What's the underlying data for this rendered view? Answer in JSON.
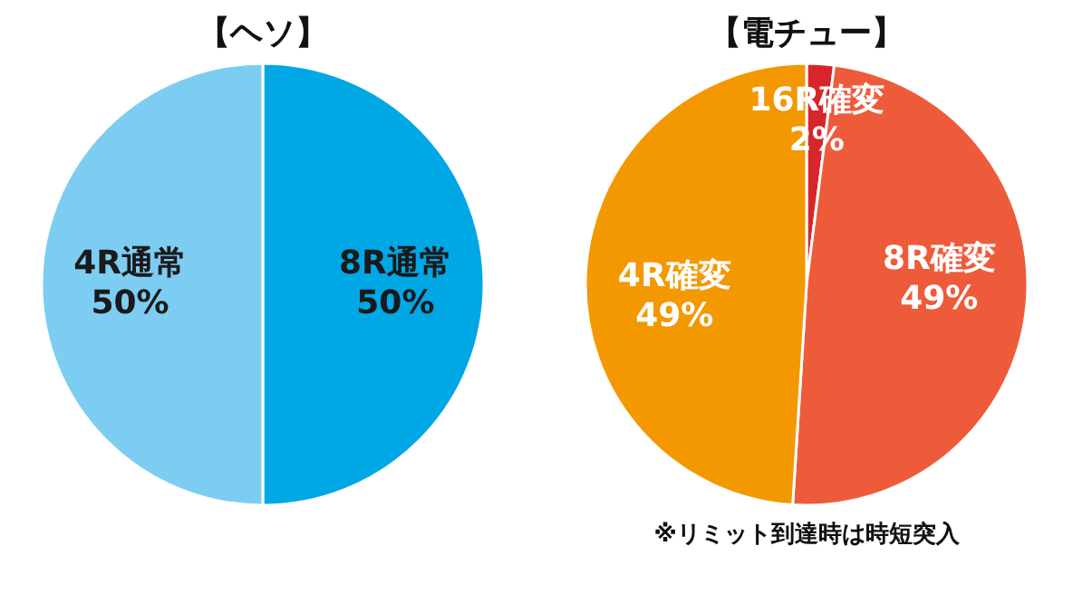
{
  "chart_data": [
    {
      "type": "pie",
      "title": "【ヘソ】",
      "categories": [
        "8R通常",
        "4R通常"
      ],
      "values": [
        50,
        50
      ],
      "colors": [
        "#00a7e5",
        "#7dcdf3"
      ],
      "value_labels": [
        "50%",
        "50%"
      ]
    },
    {
      "type": "pie",
      "title": "【電チュー】",
      "categories": [
        "16R確変",
        "8R確変",
        "4R確変"
      ],
      "values": [
        2,
        49,
        49
      ],
      "colors": [
        "#d7262a",
        "#ee5b3b",
        "#f39800"
      ],
      "value_labels": [
        "2%",
        "49%",
        "49%"
      ],
      "annotations": [
        "※リミット到達時は時短突入"
      ]
    }
  ]
}
